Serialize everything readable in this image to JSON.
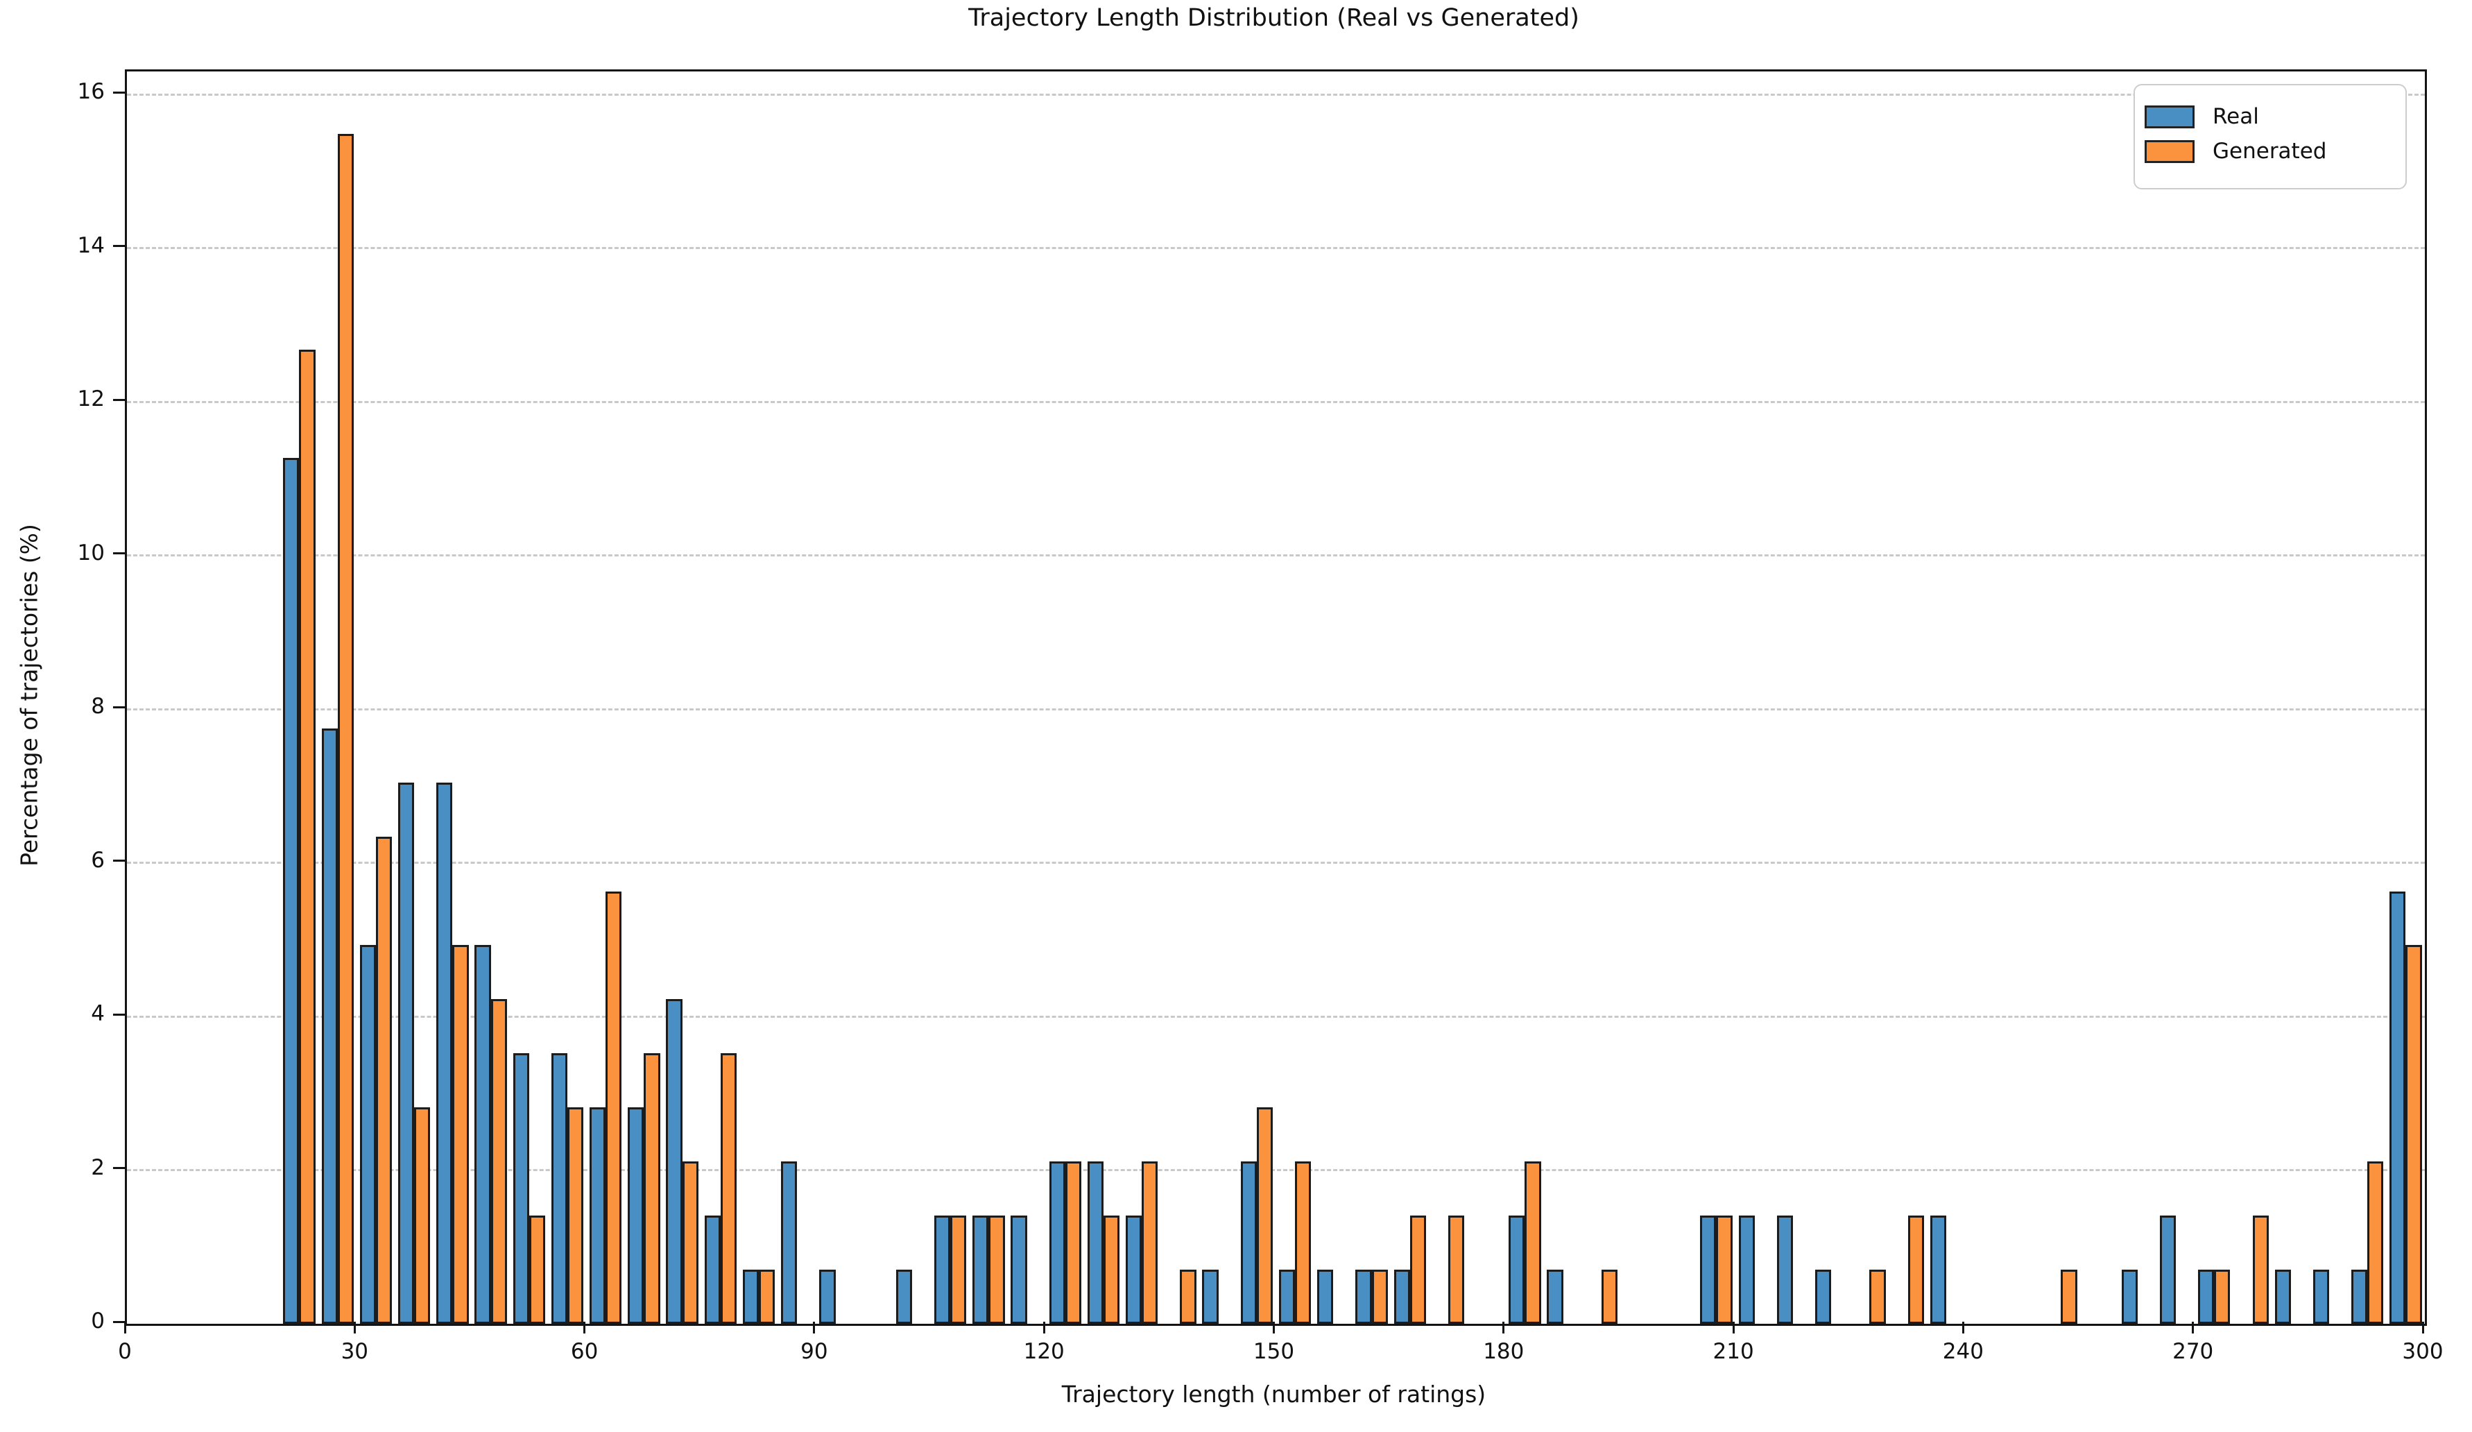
{
  "title": "Trajectory Length Distribution (Real vs Generated)",
  "x_axis": {
    "label": "Trajectory length (number of ratings)",
    "min": 0,
    "max": 300,
    "ticks": [
      0,
      30,
      60,
      90,
      120,
      150,
      180,
      210,
      240,
      270,
      300
    ]
  },
  "y_axis": {
    "label": "Percentage of trajectories (%)",
    "min": 0,
    "max": 16.3,
    "ticks": [
      0,
      2,
      4,
      6,
      8,
      10,
      12,
      14,
      16
    ]
  },
  "legend": {
    "position": "upper right",
    "items": [
      {
        "label": "Real",
        "color": "#4a8fc4"
      },
      {
        "label": "Generated",
        "color": "#fb933e"
      }
    ]
  },
  "colors": {
    "real": "#4a8fc4",
    "generated": "#fb933e",
    "bar_edge": "#1c1c1c",
    "grid": "#c9c9c9",
    "spine": "#141414",
    "background": "#ffffff"
  },
  "chart_data": {
    "type": "bar",
    "title": "Trajectory Length Distribution (Real vs Generated)",
    "xlabel": "Trajectory length (number of ratings)",
    "ylabel": "Percentage of trajectories (%)",
    "xlim": [
      0,
      300
    ],
    "ylim": [
      0,
      16.3
    ],
    "grid": "horizontal dashed at every 2%",
    "legend_position": "upper right",
    "series_names": [
      "Real",
      "Generated"
    ],
    "bin_spacing": 5,
    "bar_width_units": 2.1,
    "note": "bins = [bin_center, real_pct, generated_pct]; both series sum to 100% (142 trajectories each, quantum 0.704%)",
    "bins": [
      [
        22.5,
        11.27,
        12.68
      ],
      [
        27.5,
        7.75,
        15.49
      ],
      [
        32.5,
        4.93,
        6.34
      ],
      [
        37.5,
        7.04,
        2.82
      ],
      [
        42.5,
        7.04,
        4.93
      ],
      [
        47.5,
        4.93,
        4.23
      ],
      [
        52.5,
        3.52,
        1.41
      ],
      [
        57.5,
        3.52,
        2.82
      ],
      [
        62.5,
        2.82,
        5.63
      ],
      [
        67.5,
        2.82,
        3.52
      ],
      [
        72.5,
        4.23,
        2.11
      ],
      [
        77.5,
        1.41,
        3.52
      ],
      [
        82.5,
        0.7,
        0.7
      ],
      [
        87.5,
        2.11,
        0
      ],
      [
        92.5,
        0.7,
        0
      ],
      [
        97.5,
        0,
        0
      ],
      [
        102.5,
        0.7,
        0
      ],
      [
        107.5,
        1.41,
        1.41
      ],
      [
        112.5,
        1.41,
        1.41
      ],
      [
        117.5,
        1.41,
        0
      ],
      [
        122.5,
        2.11,
        2.11
      ],
      [
        127.5,
        2.11,
        1.41
      ],
      [
        132.5,
        1.41,
        2.11
      ],
      [
        137.5,
        0,
        0.7
      ],
      [
        142.5,
        0.7,
        0
      ],
      [
        147.5,
        2.11,
        2.82
      ],
      [
        152.5,
        0.7,
        2.11
      ],
      [
        157.5,
        0.7,
        0
      ],
      [
        162.5,
        0.7,
        0.7
      ],
      [
        167.5,
        0.7,
        1.41
      ],
      [
        172.5,
        0,
        1.41
      ],
      [
        177.5,
        0,
        0
      ],
      [
        182.5,
        1.41,
        2.11
      ],
      [
        187.5,
        0.7,
        0
      ],
      [
        192.5,
        0,
        0.7
      ],
      [
        197.5,
        0,
        0
      ],
      [
        202.5,
        0,
        0
      ],
      [
        207.5,
        1.41,
        1.41
      ],
      [
        212.5,
        1.41,
        0
      ],
      [
        217.5,
        1.41,
        0
      ],
      [
        222.5,
        0.7,
        0
      ],
      [
        227.5,
        0,
        0.7
      ],
      [
        232.5,
        0,
        1.41
      ],
      [
        237.5,
        1.41,
        0
      ],
      [
        242.5,
        0,
        0
      ],
      [
        247.5,
        0,
        0
      ],
      [
        252.5,
        0,
        0.7
      ],
      [
        257.5,
        0,
        0
      ],
      [
        262.5,
        0.7,
        0
      ],
      [
        267.5,
        1.41,
        0
      ],
      [
        272.5,
        0.7,
        0.7
      ],
      [
        277.5,
        0,
        1.41
      ],
      [
        282.5,
        0.7,
        0
      ],
      [
        287.5,
        0.7,
        0
      ],
      [
        292.5,
        0.7,
        2.11
      ],
      [
        297.5,
        5.63,
        4.93
      ]
    ]
  }
}
